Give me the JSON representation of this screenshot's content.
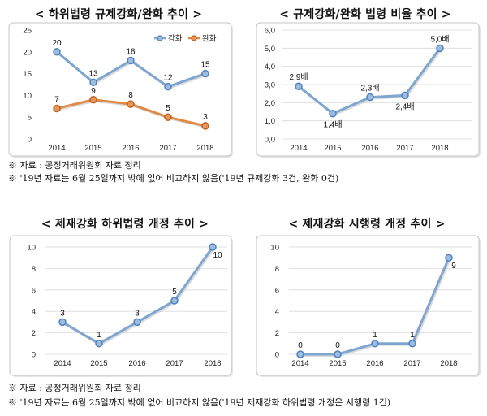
{
  "chart_data": [
    {
      "type": "line",
      "title": "< 하위법령 규제강화/완화 추이 >",
      "categories": [
        "2014",
        "2015",
        "2016",
        "2017",
        "2018"
      ],
      "ylim": [
        0,
        25
      ],
      "yticks": [
        0,
        5,
        10,
        15,
        20,
        25
      ],
      "ytick_labels": [
        "0",
        "5",
        "10",
        "15",
        "20",
        "25"
      ],
      "grid": false,
      "legend": "top-right",
      "series": [
        {
          "name": "강화",
          "values": [
            20,
            13,
            18,
            12,
            15
          ],
          "labels": [
            "20",
            "13",
            "18",
            "12",
            "15"
          ],
          "color": "#7EA6D1",
          "marker_fill": "#9DBCE0",
          "marker_stroke": "#4F81BD"
        },
        {
          "name": "완화",
          "values": [
            7,
            9,
            8,
            5,
            3
          ],
          "labels": [
            "7",
            "9",
            "8",
            "5",
            "3"
          ],
          "color": "#E08A47",
          "marker_fill": "#E9955A",
          "marker_stroke": "#C0601E"
        }
      ]
    },
    {
      "type": "line",
      "title": "< 규제강화/완화 법령 비율 추이 >",
      "categories": [
        "2014",
        "2015",
        "2016",
        "2017",
        "2018"
      ],
      "ylim": [
        0,
        6
      ],
      "yticks": [
        0,
        1,
        2,
        3,
        4,
        5,
        6
      ],
      "ytick_labels": [
        "0,0",
        "1,0",
        "2,0",
        "3,0",
        "4,0",
        "5,0",
        "6,0"
      ],
      "grid": true,
      "series": [
        {
          "name": "비율",
          "values": [
            2.9,
            1.4,
            2.3,
            2.4,
            5.0
          ],
          "labels": [
            "2,9배",
            "1,4배",
            "2,3배",
            "2,4배",
            "5,0배"
          ],
          "color": "#7EA6D1",
          "marker_fill": "#9DBCE0",
          "marker_stroke": "#4F81BD"
        }
      ]
    },
    {
      "type": "line",
      "title": "< 제재강화 하위법령 개정 추이 >",
      "categories": [
        "2014",
        "2015",
        "2016",
        "2017",
        "2018"
      ],
      "ylim": [
        0,
        10
      ],
      "yticks": [
        0,
        2,
        4,
        6,
        8,
        10
      ],
      "ytick_labels": [
        "0",
        "2",
        "4",
        "6",
        "8",
        "10"
      ],
      "grid": true,
      "series": [
        {
          "name": "하위법령 개정",
          "values": [
            3,
            1,
            3,
            5,
            10
          ],
          "labels": [
            "3",
            "1",
            "3",
            "5",
            "10"
          ],
          "color": "#7EA6D1",
          "marker_fill": "#9DBCE0",
          "marker_stroke": "#4F81BD"
        }
      ]
    },
    {
      "type": "line",
      "title": "< 제재강화 시행령 개정 추이 >",
      "categories": [
        "2014",
        "2015",
        "2016",
        "2017",
        "2018"
      ],
      "ylim": [
        0,
        10
      ],
      "yticks": [
        0,
        2,
        4,
        6,
        8,
        10
      ],
      "ytick_labels": [
        "0",
        "2",
        "4",
        "6",
        "8",
        "10"
      ],
      "grid": true,
      "series": [
        {
          "name": "시행령 개정",
          "values": [
            0,
            0,
            1,
            1,
            9
          ],
          "labels": [
            "0",
            "0",
            "1",
            "1",
            "9"
          ],
          "color": "#7EA6D1",
          "marker_fill": "#9DBCE0",
          "marker_stroke": "#4F81BD"
        }
      ]
    }
  ],
  "notes": {
    "top": [
      "※ 자료 : 공정거래위원회 자료 정리",
      "※ '19년 자료는 6월 25일까지 밖에 없어 비교하지 않음('19년 규제강화 3건, 완화 0건)"
    ],
    "bottom": [
      "※ 자료 : 공정거래위원회 자료 정리",
      "※ '19년 자료는 6월 25일까지 밖에 없어 비교하지 않음('19년 제재강화 하위법령 개정은 시행령 1건)"
    ]
  }
}
